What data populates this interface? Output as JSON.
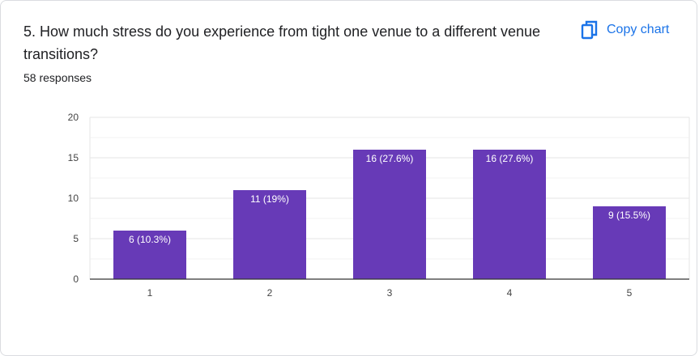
{
  "card": {
    "question": "5. How much stress do you experience from tight one venue to a different venue transitions?",
    "responses": "58 responses",
    "copy_label": "Copy chart",
    "copy_icon": "copy-icon"
  },
  "colors": {
    "bar": "#673ab7",
    "accent": "#1a73e8"
  },
  "chart_data": {
    "type": "bar",
    "categories": [
      "1",
      "2",
      "3",
      "4",
      "5"
    ],
    "values": [
      6,
      11,
      16,
      16,
      9
    ],
    "data_labels": [
      "6 (10.3%)",
      "11 (19%)",
      "16 (27.6%)",
      "16 (27.6%)",
      "9 (15.5%)"
    ],
    "ylim": [
      0,
      20
    ],
    "yticks": [
      0,
      5,
      10,
      15,
      20
    ],
    "grid": true,
    "title": "",
    "xlabel": "",
    "ylabel": ""
  }
}
